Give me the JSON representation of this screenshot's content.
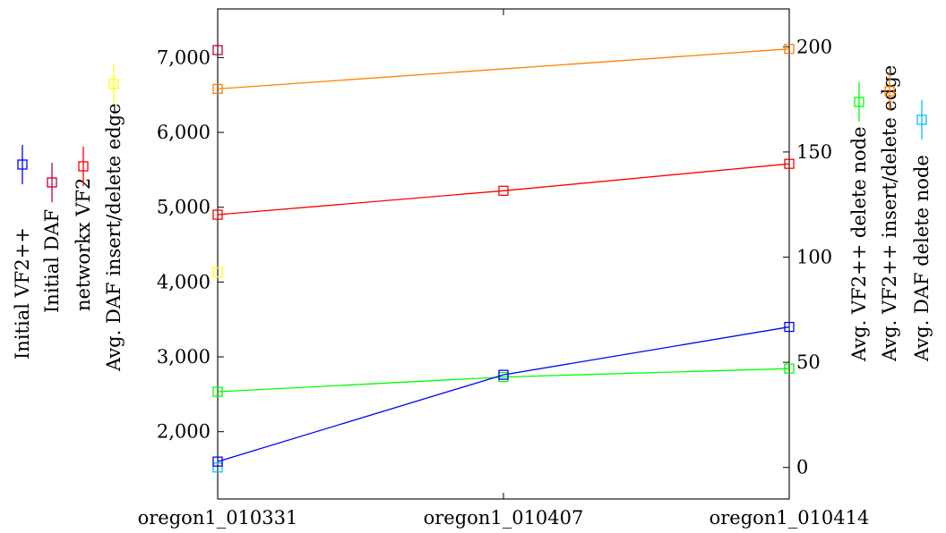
{
  "chart_data": {
    "type": "line",
    "categories": [
      "oregon1_010331",
      "oregon1_010407",
      "oregon1_010414"
    ],
    "left_axis": {
      "ylim": [
        1100,
        7650
      ],
      "ticks": [
        2000,
        3000,
        4000,
        5000,
        6000,
        7000
      ],
      "tick_labels": [
        "2,000",
        "3,000",
        "4,000",
        "5,000",
        "6,000",
        "7,000"
      ]
    },
    "right_axis": {
      "ylim": [
        -15,
        218
      ],
      "ticks": [
        0,
        50,
        100,
        150,
        200
      ],
      "tick_labels": [
        "0",
        "50",
        "100",
        "150",
        "200"
      ]
    },
    "left_series": [
      {
        "name": "Initial VF2++",
        "color": "#0000ff",
        "values": [
          1600,
          2760,
          3400
        ]
      },
      {
        "name": "Initial DAF",
        "color": "#bf0040",
        "values": [
          7100,
          null,
          null
        ]
      },
      {
        "name": "networkx VF2",
        "color": "#ff0000",
        "values": [
          4900,
          5220,
          5580
        ]
      },
      {
        "name": "Avg. DAF insert/delete edge",
        "color": "#ffff00",
        "values": [
          4130,
          null,
          null
        ]
      }
    ],
    "right_series": [
      {
        "name": "Avg. VF2++ delete node",
        "color": "#00ff00",
        "values": [
          36,
          43,
          47
        ]
      },
      {
        "name": "Avg. VF2++ insert/delete edge",
        "color": "#ff8000",
        "values": [
          180,
          null,
          199
        ]
      },
      {
        "name": "Avg. DAF delete node",
        "color": "#00bfff",
        "values": [
          0,
          null,
          null
        ]
      }
    ],
    "title": "",
    "xlabel": "",
    "ylabel": "",
    "grid": false,
    "legend_placement": "rotated labels beside both y-axes"
  }
}
